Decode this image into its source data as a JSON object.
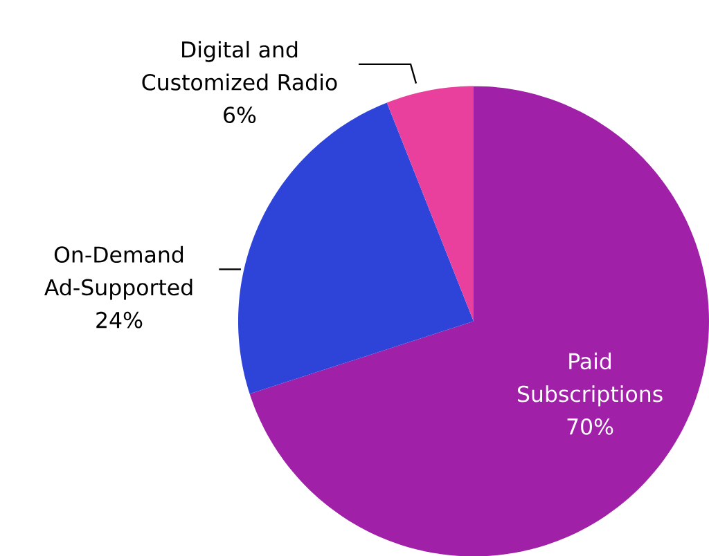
{
  "chart_data": {
    "type": "pie",
    "categories": [
      "Paid Subscriptions",
      "On-Demand Ad-Supported",
      "Digital and Customized Radio"
    ],
    "values": [
      70,
      24,
      6
    ],
    "colors": [
      "#a020a8",
      "#2e44d8",
      "#e8409c"
    ],
    "value_labels": [
      "70%",
      "24%",
      "6%"
    ]
  }
}
